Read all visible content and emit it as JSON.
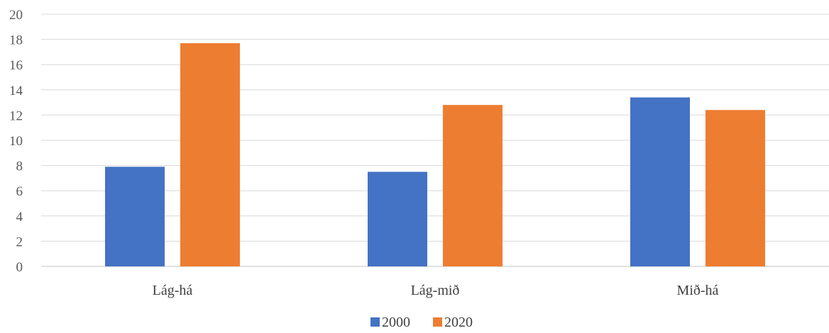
{
  "chart_data": {
    "type": "bar",
    "categories": [
      "Lág-há",
      "Lág-mið",
      "Mið-há"
    ],
    "series": [
      {
        "name": "2000",
        "values": [
          7.9,
          7.5,
          13.4
        ],
        "color": "#4472C4"
      },
      {
        "name": "2020",
        "values": [
          17.7,
          12.8,
          12.4
        ],
        "color": "#ED7D31"
      }
    ],
    "ylim": [
      0,
      20
    ],
    "yticks": [
      "0",
      "2",
      "4",
      "6",
      "8",
      "10",
      "12",
      "14",
      "16",
      "18",
      "20"
    ],
    "grid": true,
    "legend_position": "bottom",
    "gridline_color": "#d9d9d9"
  }
}
